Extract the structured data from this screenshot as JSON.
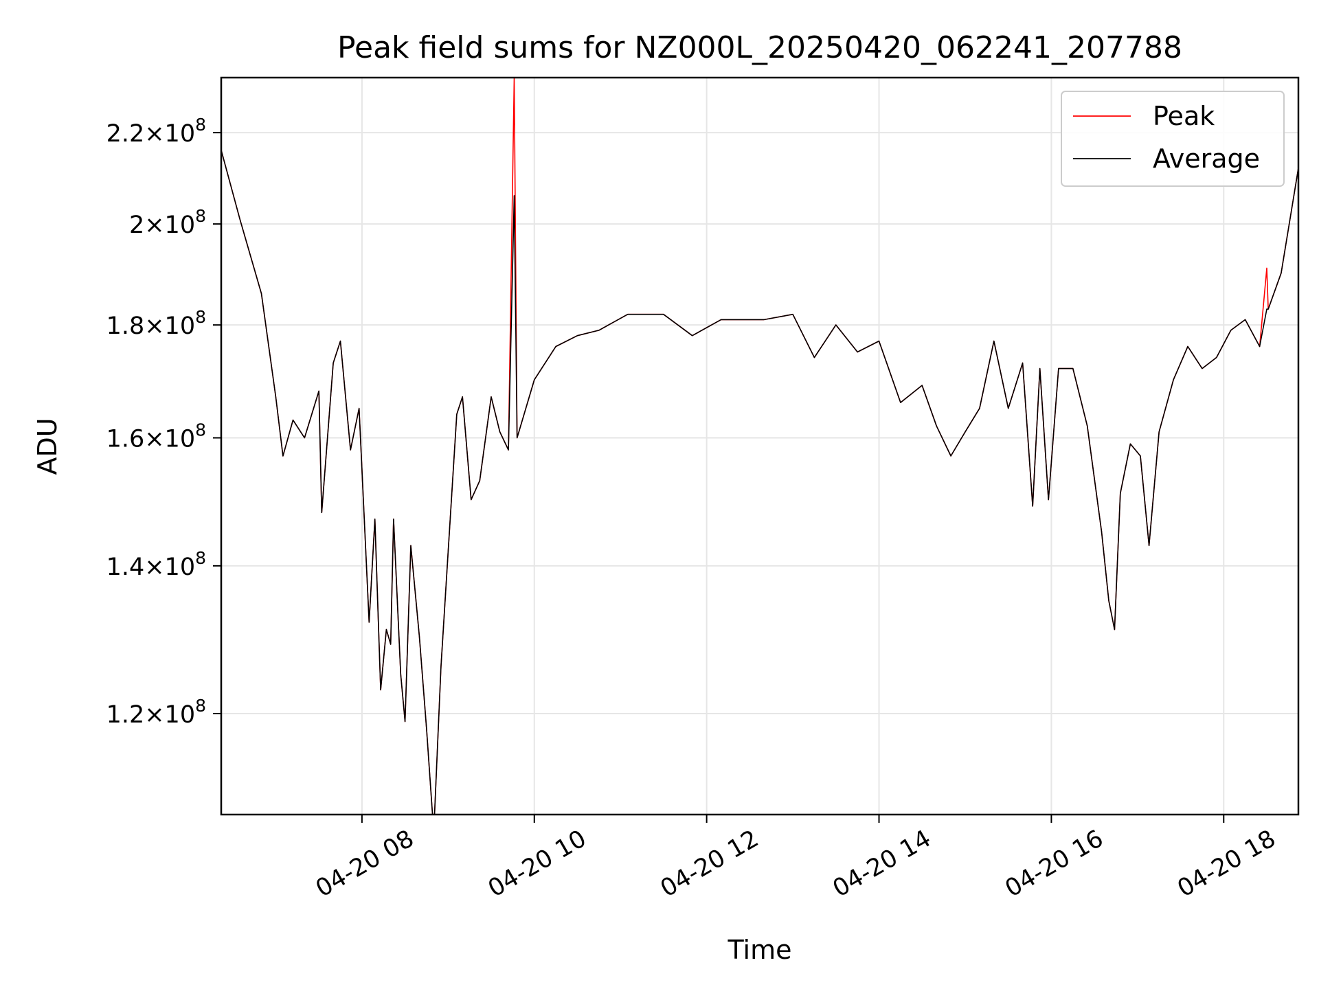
{
  "chart_data": {
    "type": "line",
    "title": "Peak field sums for NZ000L_20250420_062241_207788",
    "xlabel": "Time",
    "ylabel": "ADU",
    "y_scale": "log",
    "x_range": [
      "2025-04-20 06:22",
      "2025-04-20 18:52"
    ],
    "ylim": [
      108000000,
      233000000
    ],
    "grid": true,
    "legend_position": "top-right",
    "x_ticks": [
      {
        "t": "2025-04-20 08:00",
        "label": "04-20 08"
      },
      {
        "t": "2025-04-20 10:00",
        "label": "04-20 10"
      },
      {
        "t": "2025-04-20 12:00",
        "label": "04-20 12"
      },
      {
        "t": "2025-04-20 14:00",
        "label": "04-20 14"
      },
      {
        "t": "2025-04-20 16:00",
        "label": "04-20 16"
      },
      {
        "t": "2025-04-20 18:00",
        "label": "04-20 18"
      }
    ],
    "y_ticks": [
      {
        "value": 120000000,
        "mantissa": "1.2",
        "base": "10",
        "exp": "8"
      },
      {
        "value": 140000000,
        "mantissa": "1.4",
        "base": "10",
        "exp": "8"
      },
      {
        "value": 160000000,
        "mantissa": "1.6",
        "base": "10",
        "exp": "8"
      },
      {
        "value": 180000000,
        "mantissa": "1.8",
        "base": "10",
        "exp": "8"
      },
      {
        "value": 200000000,
        "mantissa": "2",
        "base": "10",
        "exp": "8"
      },
      {
        "value": 220000000,
        "mantissa": "2.2",
        "base": "10",
        "exp": "8"
      }
    ],
    "series": [
      {
        "name": "Peak",
        "color": "#ff0000",
        "points": [
          [
            "2025-04-20 06:22",
            216000000
          ],
          [
            "2025-04-20 06:35",
            201000000
          ],
          [
            "2025-04-20 06:50",
            186000000
          ],
          [
            "2025-04-20 07:00",
            167000000
          ],
          [
            "2025-04-20 07:05",
            157000000
          ],
          [
            "2025-04-20 07:12",
            163000000
          ],
          [
            "2025-04-20 07:20",
            160000000
          ],
          [
            "2025-04-20 07:30",
            168000000
          ],
          [
            "2025-04-20 07:32",
            148000000
          ],
          [
            "2025-04-20 07:40",
            173000000
          ],
          [
            "2025-04-20 07:45",
            177000000
          ],
          [
            "2025-04-20 07:52",
            158000000
          ],
          [
            "2025-04-20 07:58",
            165000000
          ],
          [
            "2025-04-20 08:05",
            132000000
          ],
          [
            "2025-04-20 08:09",
            147000000
          ],
          [
            "2025-04-20 08:13",
            123000000
          ],
          [
            "2025-04-20 08:17",
            131000000
          ],
          [
            "2025-04-20 08:20",
            129000000
          ],
          [
            "2025-04-20 08:22",
            147000000
          ],
          [
            "2025-04-20 08:27",
            125000000
          ],
          [
            "2025-04-20 08:30",
            119000000
          ],
          [
            "2025-04-20 08:34",
            143000000
          ],
          [
            "2025-04-20 08:40",
            130000000
          ],
          [
            "2025-04-20 08:45",
            118000000
          ],
          [
            "2025-04-20 08:50",
            106000000
          ],
          [
            "2025-04-20 08:55",
            126000000
          ],
          [
            "2025-04-20 09:00",
            142000000
          ],
          [
            "2025-04-20 09:06",
            164000000
          ],
          [
            "2025-04-20 09:10",
            167000000
          ],
          [
            "2025-04-20 09:16",
            150000000
          ],
          [
            "2025-04-20 09:22",
            153000000
          ],
          [
            "2025-04-20 09:30",
            167000000
          ],
          [
            "2025-04-20 09:36",
            161000000
          ],
          [
            "2025-04-20 09:42",
            158000000
          ],
          [
            "2025-04-20 09:46",
            233000000
          ],
          [
            "2025-04-20 09:48",
            160000000
          ],
          [
            "2025-04-20 10:00",
            170000000
          ],
          [
            "2025-04-20 10:15",
            176000000
          ],
          [
            "2025-04-20 10:30",
            178000000
          ],
          [
            "2025-04-20 10:45",
            179000000
          ],
          [
            "2025-04-20 11:05",
            182000000
          ],
          [
            "2025-04-20 11:30",
            182000000
          ],
          [
            "2025-04-20 11:50",
            178000000
          ],
          [
            "2025-04-20 12:10",
            181000000
          ],
          [
            "2025-04-20 12:40",
            181000000
          ],
          [
            "2025-04-20 13:00",
            182000000
          ],
          [
            "2025-04-20 13:15",
            174000000
          ],
          [
            "2025-04-20 13:30",
            180000000
          ],
          [
            "2025-04-20 13:45",
            175000000
          ],
          [
            "2025-04-20 14:00",
            177000000
          ],
          [
            "2025-04-20 14:15",
            166000000
          ],
          [
            "2025-04-20 14:30",
            169000000
          ],
          [
            "2025-04-20 14:40",
            162000000
          ],
          [
            "2025-04-20 14:50",
            157000000
          ],
          [
            "2025-04-20 15:00",
            161000000
          ],
          [
            "2025-04-20 15:10",
            165000000
          ],
          [
            "2025-04-20 15:20",
            177000000
          ],
          [
            "2025-04-20 15:30",
            165000000
          ],
          [
            "2025-04-20 15:40",
            173000000
          ],
          [
            "2025-04-20 15:47",
            149000000
          ],
          [
            "2025-04-20 15:52",
            172000000
          ],
          [
            "2025-04-20 15:58",
            150000000
          ],
          [
            "2025-04-20 16:05",
            172000000
          ],
          [
            "2025-04-20 16:15",
            172000000
          ],
          [
            "2025-04-20 16:25",
            162000000
          ],
          [
            "2025-04-20 16:35",
            145000000
          ],
          [
            "2025-04-20 16:40",
            135000000
          ],
          [
            "2025-04-20 16:44",
            131000000
          ],
          [
            "2025-04-20 16:48",
            151000000
          ],
          [
            "2025-04-20 16:55",
            159000000
          ],
          [
            "2025-04-20 17:02",
            157000000
          ],
          [
            "2025-04-20 17:08",
            143000000
          ],
          [
            "2025-04-20 17:15",
            161000000
          ],
          [
            "2025-04-20 17:25",
            170000000
          ],
          [
            "2025-04-20 17:35",
            176000000
          ],
          [
            "2025-04-20 17:45",
            172000000
          ],
          [
            "2025-04-20 17:55",
            174000000
          ],
          [
            "2025-04-20 18:05",
            179000000
          ],
          [
            "2025-04-20 18:15",
            181000000
          ],
          [
            "2025-04-20 18:25",
            176000000
          ],
          [
            "2025-04-20 18:30",
            191000000
          ],
          [
            "2025-04-20 18:31",
            183000000
          ],
          [
            "2025-04-20 18:40",
            190000000
          ],
          [
            "2025-04-20 18:52",
            212000000
          ]
        ]
      },
      {
        "name": "Average",
        "color": "#000000",
        "points": [
          [
            "2025-04-20 06:22",
            216000000
          ],
          [
            "2025-04-20 06:35",
            201000000
          ],
          [
            "2025-04-20 06:50",
            186000000
          ],
          [
            "2025-04-20 07:00",
            167000000
          ],
          [
            "2025-04-20 07:05",
            157000000
          ],
          [
            "2025-04-20 07:12",
            163000000
          ],
          [
            "2025-04-20 07:20",
            160000000
          ],
          [
            "2025-04-20 07:30",
            168000000
          ],
          [
            "2025-04-20 07:32",
            148000000
          ],
          [
            "2025-04-20 07:40",
            173000000
          ],
          [
            "2025-04-20 07:45",
            177000000
          ],
          [
            "2025-04-20 07:52",
            158000000
          ],
          [
            "2025-04-20 07:58",
            165000000
          ],
          [
            "2025-04-20 08:05",
            132000000
          ],
          [
            "2025-04-20 08:09",
            147000000
          ],
          [
            "2025-04-20 08:13",
            123000000
          ],
          [
            "2025-04-20 08:17",
            131000000
          ],
          [
            "2025-04-20 08:20",
            129000000
          ],
          [
            "2025-04-20 08:22",
            147000000
          ],
          [
            "2025-04-20 08:27",
            125000000
          ],
          [
            "2025-04-20 08:30",
            119000000
          ],
          [
            "2025-04-20 08:34",
            143000000
          ],
          [
            "2025-04-20 08:40",
            130000000
          ],
          [
            "2025-04-20 08:45",
            118000000
          ],
          [
            "2025-04-20 08:50",
            106000000
          ],
          [
            "2025-04-20 08:55",
            126000000
          ],
          [
            "2025-04-20 09:00",
            142000000
          ],
          [
            "2025-04-20 09:06",
            164000000
          ],
          [
            "2025-04-20 09:10",
            167000000
          ],
          [
            "2025-04-20 09:16",
            150000000
          ],
          [
            "2025-04-20 09:22",
            153000000
          ],
          [
            "2025-04-20 09:30",
            167000000
          ],
          [
            "2025-04-20 09:36",
            161000000
          ],
          [
            "2025-04-20 09:42",
            158000000
          ],
          [
            "2025-04-20 09:46",
            206000000
          ],
          [
            "2025-04-20 09:48",
            160000000
          ],
          [
            "2025-04-20 10:00",
            170000000
          ],
          [
            "2025-04-20 10:15",
            176000000
          ],
          [
            "2025-04-20 10:30",
            178000000
          ],
          [
            "2025-04-20 10:45",
            179000000
          ],
          [
            "2025-04-20 11:05",
            182000000
          ],
          [
            "2025-04-20 11:30",
            182000000
          ],
          [
            "2025-04-20 11:50",
            178000000
          ],
          [
            "2025-04-20 12:10",
            181000000
          ],
          [
            "2025-04-20 12:40",
            181000000
          ],
          [
            "2025-04-20 13:00",
            182000000
          ],
          [
            "2025-04-20 13:15",
            174000000
          ],
          [
            "2025-04-20 13:30",
            180000000
          ],
          [
            "2025-04-20 13:45",
            175000000
          ],
          [
            "2025-04-20 14:00",
            177000000
          ],
          [
            "2025-04-20 14:15",
            166000000
          ],
          [
            "2025-04-20 14:30",
            169000000
          ],
          [
            "2025-04-20 14:40",
            162000000
          ],
          [
            "2025-04-20 14:50",
            157000000
          ],
          [
            "2025-04-20 15:00",
            161000000
          ],
          [
            "2025-04-20 15:10",
            165000000
          ],
          [
            "2025-04-20 15:20",
            177000000
          ],
          [
            "2025-04-20 15:30",
            165000000
          ],
          [
            "2025-04-20 15:40",
            173000000
          ],
          [
            "2025-04-20 15:47",
            149000000
          ],
          [
            "2025-04-20 15:52",
            172000000
          ],
          [
            "2025-04-20 15:58",
            150000000
          ],
          [
            "2025-04-20 16:05",
            172000000
          ],
          [
            "2025-04-20 16:15",
            172000000
          ],
          [
            "2025-04-20 16:25",
            162000000
          ],
          [
            "2025-04-20 16:35",
            145000000
          ],
          [
            "2025-04-20 16:40",
            135000000
          ],
          [
            "2025-04-20 16:44",
            131000000
          ],
          [
            "2025-04-20 16:48",
            151000000
          ],
          [
            "2025-04-20 16:55",
            159000000
          ],
          [
            "2025-04-20 17:02",
            157000000
          ],
          [
            "2025-04-20 17:08",
            143000000
          ],
          [
            "2025-04-20 17:15",
            161000000
          ],
          [
            "2025-04-20 17:25",
            170000000
          ],
          [
            "2025-04-20 17:35",
            176000000
          ],
          [
            "2025-04-20 17:45",
            172000000
          ],
          [
            "2025-04-20 17:55",
            174000000
          ],
          [
            "2025-04-20 18:05",
            179000000
          ],
          [
            "2025-04-20 18:15",
            181000000
          ],
          [
            "2025-04-20 18:25",
            176000000
          ],
          [
            "2025-04-20 18:30",
            183000000
          ],
          [
            "2025-04-20 18:31",
            183000000
          ],
          [
            "2025-04-20 18:40",
            190000000
          ],
          [
            "2025-04-20 18:52",
            212000000
          ]
        ]
      }
    ]
  }
}
